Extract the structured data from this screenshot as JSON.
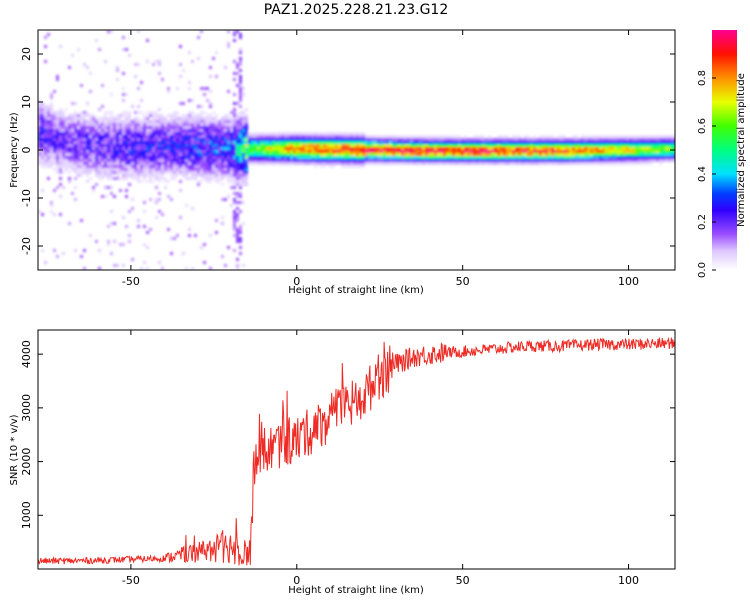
{
  "chart_data": [
    {
      "type": "heatmap",
      "title": "PAZ1.2025.228.21.23.G12",
      "xlabel": "Height of straight line (km)",
      "ylabel": "Frequency (Hz)",
      "xlim": [
        -78,
        114
      ],
      "ylim": [
        -25,
        25
      ],
      "xticks": [
        -50,
        0,
        50,
        100
      ],
      "xtick_labels": [
        "-50",
        "0",
        "50",
        "100"
      ],
      "yticks": [
        -20,
        -10,
        0,
        10,
        20
      ],
      "ytick_labels": [
        "-20",
        "-10",
        "0",
        "10",
        "20"
      ],
      "colorbar": {
        "label": "Normalized spectral amplitude",
        "range": [
          0,
          1
        ],
        "ticks": [
          0.0,
          0.2,
          0.4,
          0.6,
          0.8
        ],
        "tick_labels": [
          "0.0",
          "0.2",
          "0.4",
          "0.6",
          "0.8"
        ],
        "colors": [
          "#ffffff",
          "#b98cff",
          "#6a00ff",
          "#0000ff",
          "#00ffff",
          "#00ff00",
          "#ffff00",
          "#ff8000",
          "#ff0000",
          "#ff0080"
        ]
      },
      "ridge": {
        "description_points_x": [
          -78,
          -70,
          -60,
          -50,
          -40,
          -30,
          -20,
          -15,
          0,
          20,
          40,
          60,
          80,
          100,
          114
        ],
        "description_points_freq": [
          4,
          2,
          1,
          1,
          1,
          1,
          0.5,
          0.5,
          0.5,
          0.3,
          0.1,
          0.1,
          0.1,
          0.3,
          0.5
        ],
        "peak_amplitude": [
          0.25,
          0.2,
          0.22,
          0.25,
          0.25,
          0.28,
          0.3,
          0.6,
          0.85,
          0.95,
          0.95,
          0.93,
          0.9,
          0.75,
          0.6
        ]
      }
    },
    {
      "type": "line",
      "xlabel": "Height of straight line (km)",
      "ylabel": "SNR (10 * v/v)",
      "xlim": [
        -78,
        114
      ],
      "ylim": [
        0,
        4450
      ],
      "xticks": [
        -50,
        0,
        50,
        100
      ],
      "xtick_labels": [
        "-50",
        "0",
        "50",
        "100"
      ],
      "yticks": [
        1000,
        2000,
        3000,
        4000
      ],
      "ytick_labels": [
        "1000",
        "2000",
        "3000",
        "4000"
      ],
      "color": "#ee2a24",
      "x": [
        -78,
        -70,
        -60,
        -50,
        -40,
        -35,
        -30,
        -25,
        -20,
        -16,
        -14,
        -13,
        -10,
        -5,
        0,
        5,
        10,
        15,
        20,
        25,
        30,
        35,
        40,
        50,
        60,
        70,
        80,
        90,
        100,
        110,
        114
      ],
      "y": [
        150,
        150,
        160,
        180,
        200,
        260,
        320,
        380,
        420,
        380,
        200,
        1900,
        2200,
        2300,
        2400,
        2600,
        2800,
        3000,
        3200,
        3600,
        3800,
        3950,
        4000,
        4050,
        4100,
        4150,
        4150,
        4180,
        4180,
        4200,
        4200
      ]
    }
  ]
}
